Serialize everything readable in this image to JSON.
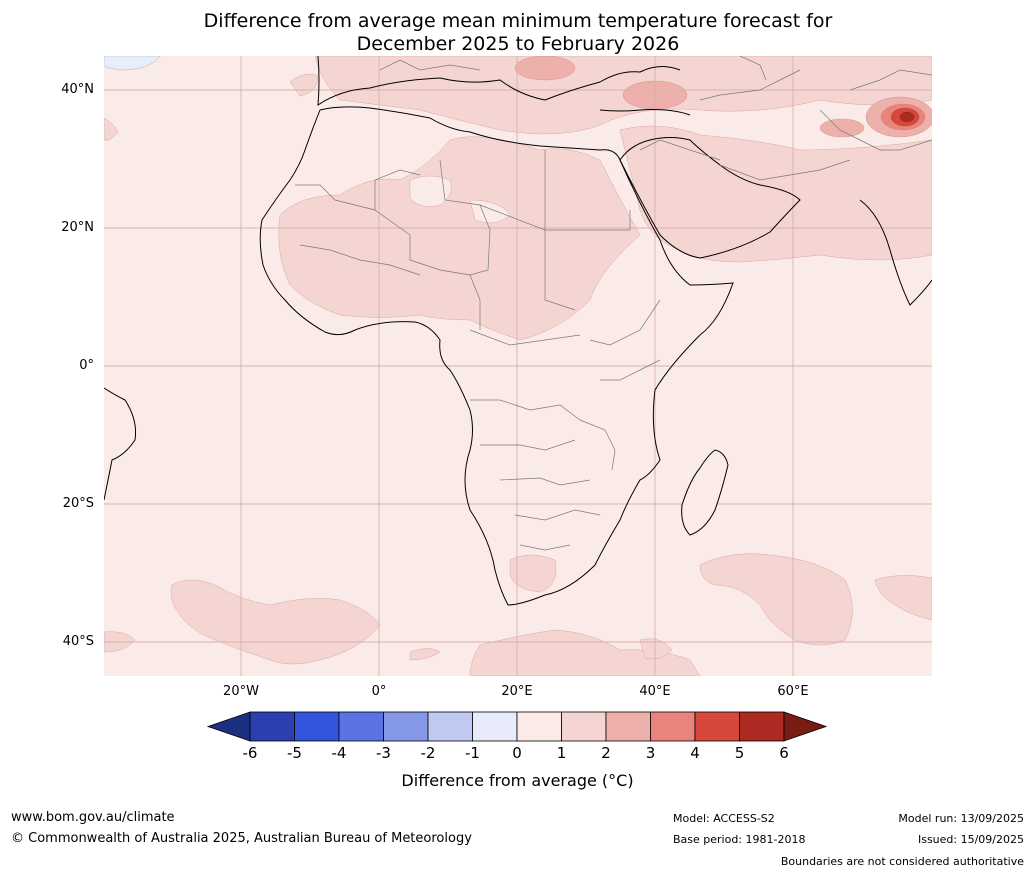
{
  "title": {
    "line1": "Difference from average mean minimum temperature forecast for",
    "line2": "December 2025 to February 2026"
  },
  "map": {
    "lat_labels": [
      "40°N",
      "20°N",
      "0°",
      "20°S",
      "40°S"
    ],
    "lon_labels": [
      "20°W",
      "0°",
      "20°E",
      "40°E",
      "60°E"
    ],
    "colors": {
      "ocean_base": "#fbebe8",
      "band_1_2": "#f5d5d2",
      "band_2_3": "#eeb0aa",
      "band_3_4": "#e8847c",
      "band_4_5": "#d8473c",
      "band_5_6": "#ab2b22",
      "band_neg_0_1": "#e8edfa"
    }
  },
  "colorbar": {
    "ticks": [
      "-6",
      "-5",
      "-4",
      "-3",
      "-2",
      "-1",
      "0",
      "1",
      "2",
      "3",
      "4",
      "5",
      "6"
    ],
    "colors": [
      "#1c2f80",
      "#2a40b0",
      "#3454dd",
      "#5a75e3",
      "#8599e8",
      "#c0c9f2",
      "#e8ebfa",
      "#fbebe8",
      "#f5d5d2",
      "#eeb0aa",
      "#e8847c",
      "#d8473c",
      "#ab2b22",
      "#7a1c15"
    ],
    "label": "Difference from average (°C)"
  },
  "footer": {
    "website": "www.bom.gov.au/climate",
    "copyright": "© Commonwealth of Australia 2025, Australian Bureau of Meteorology",
    "model": "Model: ACCESS-S2",
    "base_period": "Base period: 1981-2018",
    "model_run": "Model run: 13/09/2025",
    "issued": "Issued: 15/09/2025",
    "disclaimer": "Boundaries are not considered authoritative"
  }
}
